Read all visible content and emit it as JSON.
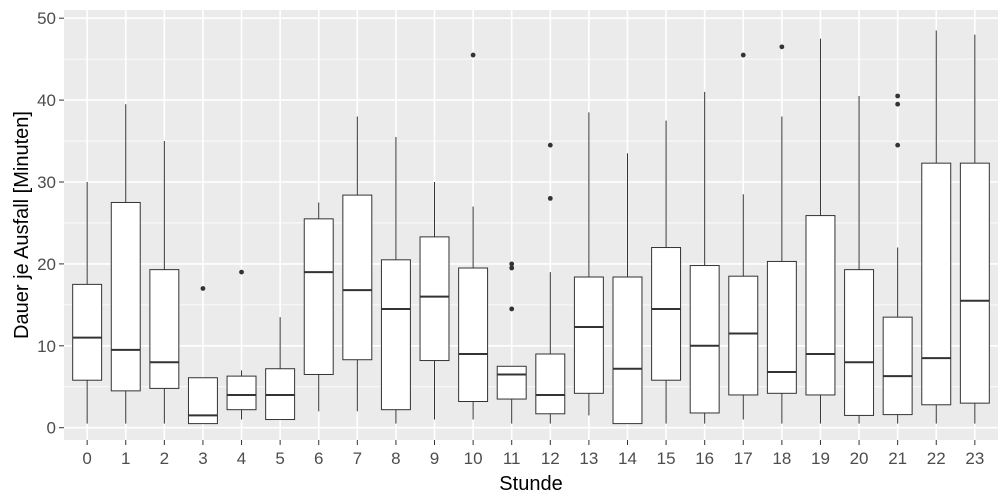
{
  "chart_data": {
    "type": "boxplot",
    "xlabel": "Stunde",
    "ylabel": "Dauer je Ausfall [Minuten]",
    "ylim": [
      -1.5,
      51
    ],
    "y_ticks": [
      0,
      10,
      20,
      30,
      40,
      50
    ],
    "grid": true,
    "colors": {
      "panel": "#ebebeb",
      "grid": "#ffffff",
      "box_fill": "#ffffff",
      "box_stroke": "#333333"
    },
    "categories": [
      "0",
      "1",
      "2",
      "3",
      "4",
      "5",
      "6",
      "7",
      "8",
      "9",
      "10",
      "11",
      "12",
      "13",
      "14",
      "15",
      "16",
      "17",
      "18",
      "19",
      "20",
      "21",
      "22",
      "23"
    ],
    "boxes": [
      {
        "x": "0",
        "min": 0.5,
        "q1": 5.8,
        "median": 11.0,
        "q3": 17.5,
        "max": 30.0,
        "outliers": []
      },
      {
        "x": "1",
        "min": 0.5,
        "q1": 4.5,
        "median": 9.5,
        "q3": 27.5,
        "max": 39.5,
        "outliers": []
      },
      {
        "x": "2",
        "min": 0.5,
        "q1": 4.8,
        "median": 8.0,
        "q3": 19.3,
        "max": 35.0,
        "outliers": []
      },
      {
        "x": "3",
        "min": 0.5,
        "q1": 0.5,
        "median": 1.5,
        "q3": 6.1,
        "max": 6.1,
        "outliers": [
          17.0
        ]
      },
      {
        "x": "4",
        "min": 1.0,
        "q1": 2.2,
        "median": 4.0,
        "q3": 6.3,
        "max": 7.0,
        "outliers": [
          19.0
        ]
      },
      {
        "x": "5",
        "min": 1.0,
        "q1": 1.0,
        "median": 4.0,
        "q3": 7.2,
        "max": 13.5,
        "outliers": []
      },
      {
        "x": "6",
        "min": 2.0,
        "q1": 6.5,
        "median": 19.0,
        "q3": 25.5,
        "max": 27.5,
        "outliers": []
      },
      {
        "x": "7",
        "min": 2.0,
        "q1": 8.3,
        "median": 16.8,
        "q3": 28.4,
        "max": 38.0,
        "outliers": []
      },
      {
        "x": "8",
        "min": 0.5,
        "q1": 2.2,
        "median": 14.5,
        "q3": 20.5,
        "max": 35.5,
        "outliers": []
      },
      {
        "x": "9",
        "min": 1.0,
        "q1": 8.2,
        "median": 16.0,
        "q3": 23.3,
        "max": 30.0,
        "outliers": []
      },
      {
        "x": "10",
        "min": 1.0,
        "q1": 3.2,
        "median": 9.0,
        "q3": 19.5,
        "max": 27.0,
        "outliers": [
          45.5
        ]
      },
      {
        "x": "11",
        "min": 0.5,
        "q1": 3.5,
        "median": 6.5,
        "q3": 7.5,
        "max": 7.5,
        "outliers": [
          14.5,
          19.5,
          20.0
        ]
      },
      {
        "x": "12",
        "min": 0.5,
        "q1": 1.7,
        "median": 4.0,
        "q3": 9.0,
        "max": 19.0,
        "outliers": [
          28.0,
          34.5
        ]
      },
      {
        "x": "13",
        "min": 1.5,
        "q1": 4.2,
        "median": 12.3,
        "q3": 18.4,
        "max": 38.5,
        "outliers": []
      },
      {
        "x": "14",
        "min": 0.5,
        "q1": 0.5,
        "median": 7.2,
        "q3": 18.4,
        "max": 33.5,
        "outliers": []
      },
      {
        "x": "15",
        "min": 0.5,
        "q1": 5.8,
        "median": 14.5,
        "q3": 22.0,
        "max": 37.5,
        "outliers": []
      },
      {
        "x": "16",
        "min": 0.5,
        "q1": 1.8,
        "median": 10.0,
        "q3": 19.8,
        "max": 41.0,
        "outliers": []
      },
      {
        "x": "17",
        "min": 1.0,
        "q1": 4.0,
        "median": 11.5,
        "q3": 18.5,
        "max": 28.5,
        "outliers": [
          45.5
        ]
      },
      {
        "x": "18",
        "min": 0.5,
        "q1": 4.2,
        "median": 6.8,
        "q3": 20.3,
        "max": 38.0,
        "outliers": [
          46.5
        ]
      },
      {
        "x": "19",
        "min": 0.5,
        "q1": 4.0,
        "median": 9.0,
        "q3": 25.9,
        "max": 47.5,
        "outliers": []
      },
      {
        "x": "20",
        "min": 0.5,
        "q1": 1.5,
        "median": 8.0,
        "q3": 19.3,
        "max": 40.5,
        "outliers": []
      },
      {
        "x": "21",
        "min": 0.5,
        "q1": 1.6,
        "median": 6.3,
        "q3": 13.5,
        "max": 22.0,
        "outliers": [
          34.5,
          39.5,
          40.5
        ]
      },
      {
        "x": "22",
        "min": 0.5,
        "q1": 2.8,
        "median": 8.5,
        "q3": 32.3,
        "max": 48.5,
        "outliers": []
      },
      {
        "x": "23",
        "min": 0.5,
        "q1": 3.0,
        "median": 15.5,
        "q3": 32.3,
        "max": 48.0,
        "outliers": []
      }
    ]
  }
}
